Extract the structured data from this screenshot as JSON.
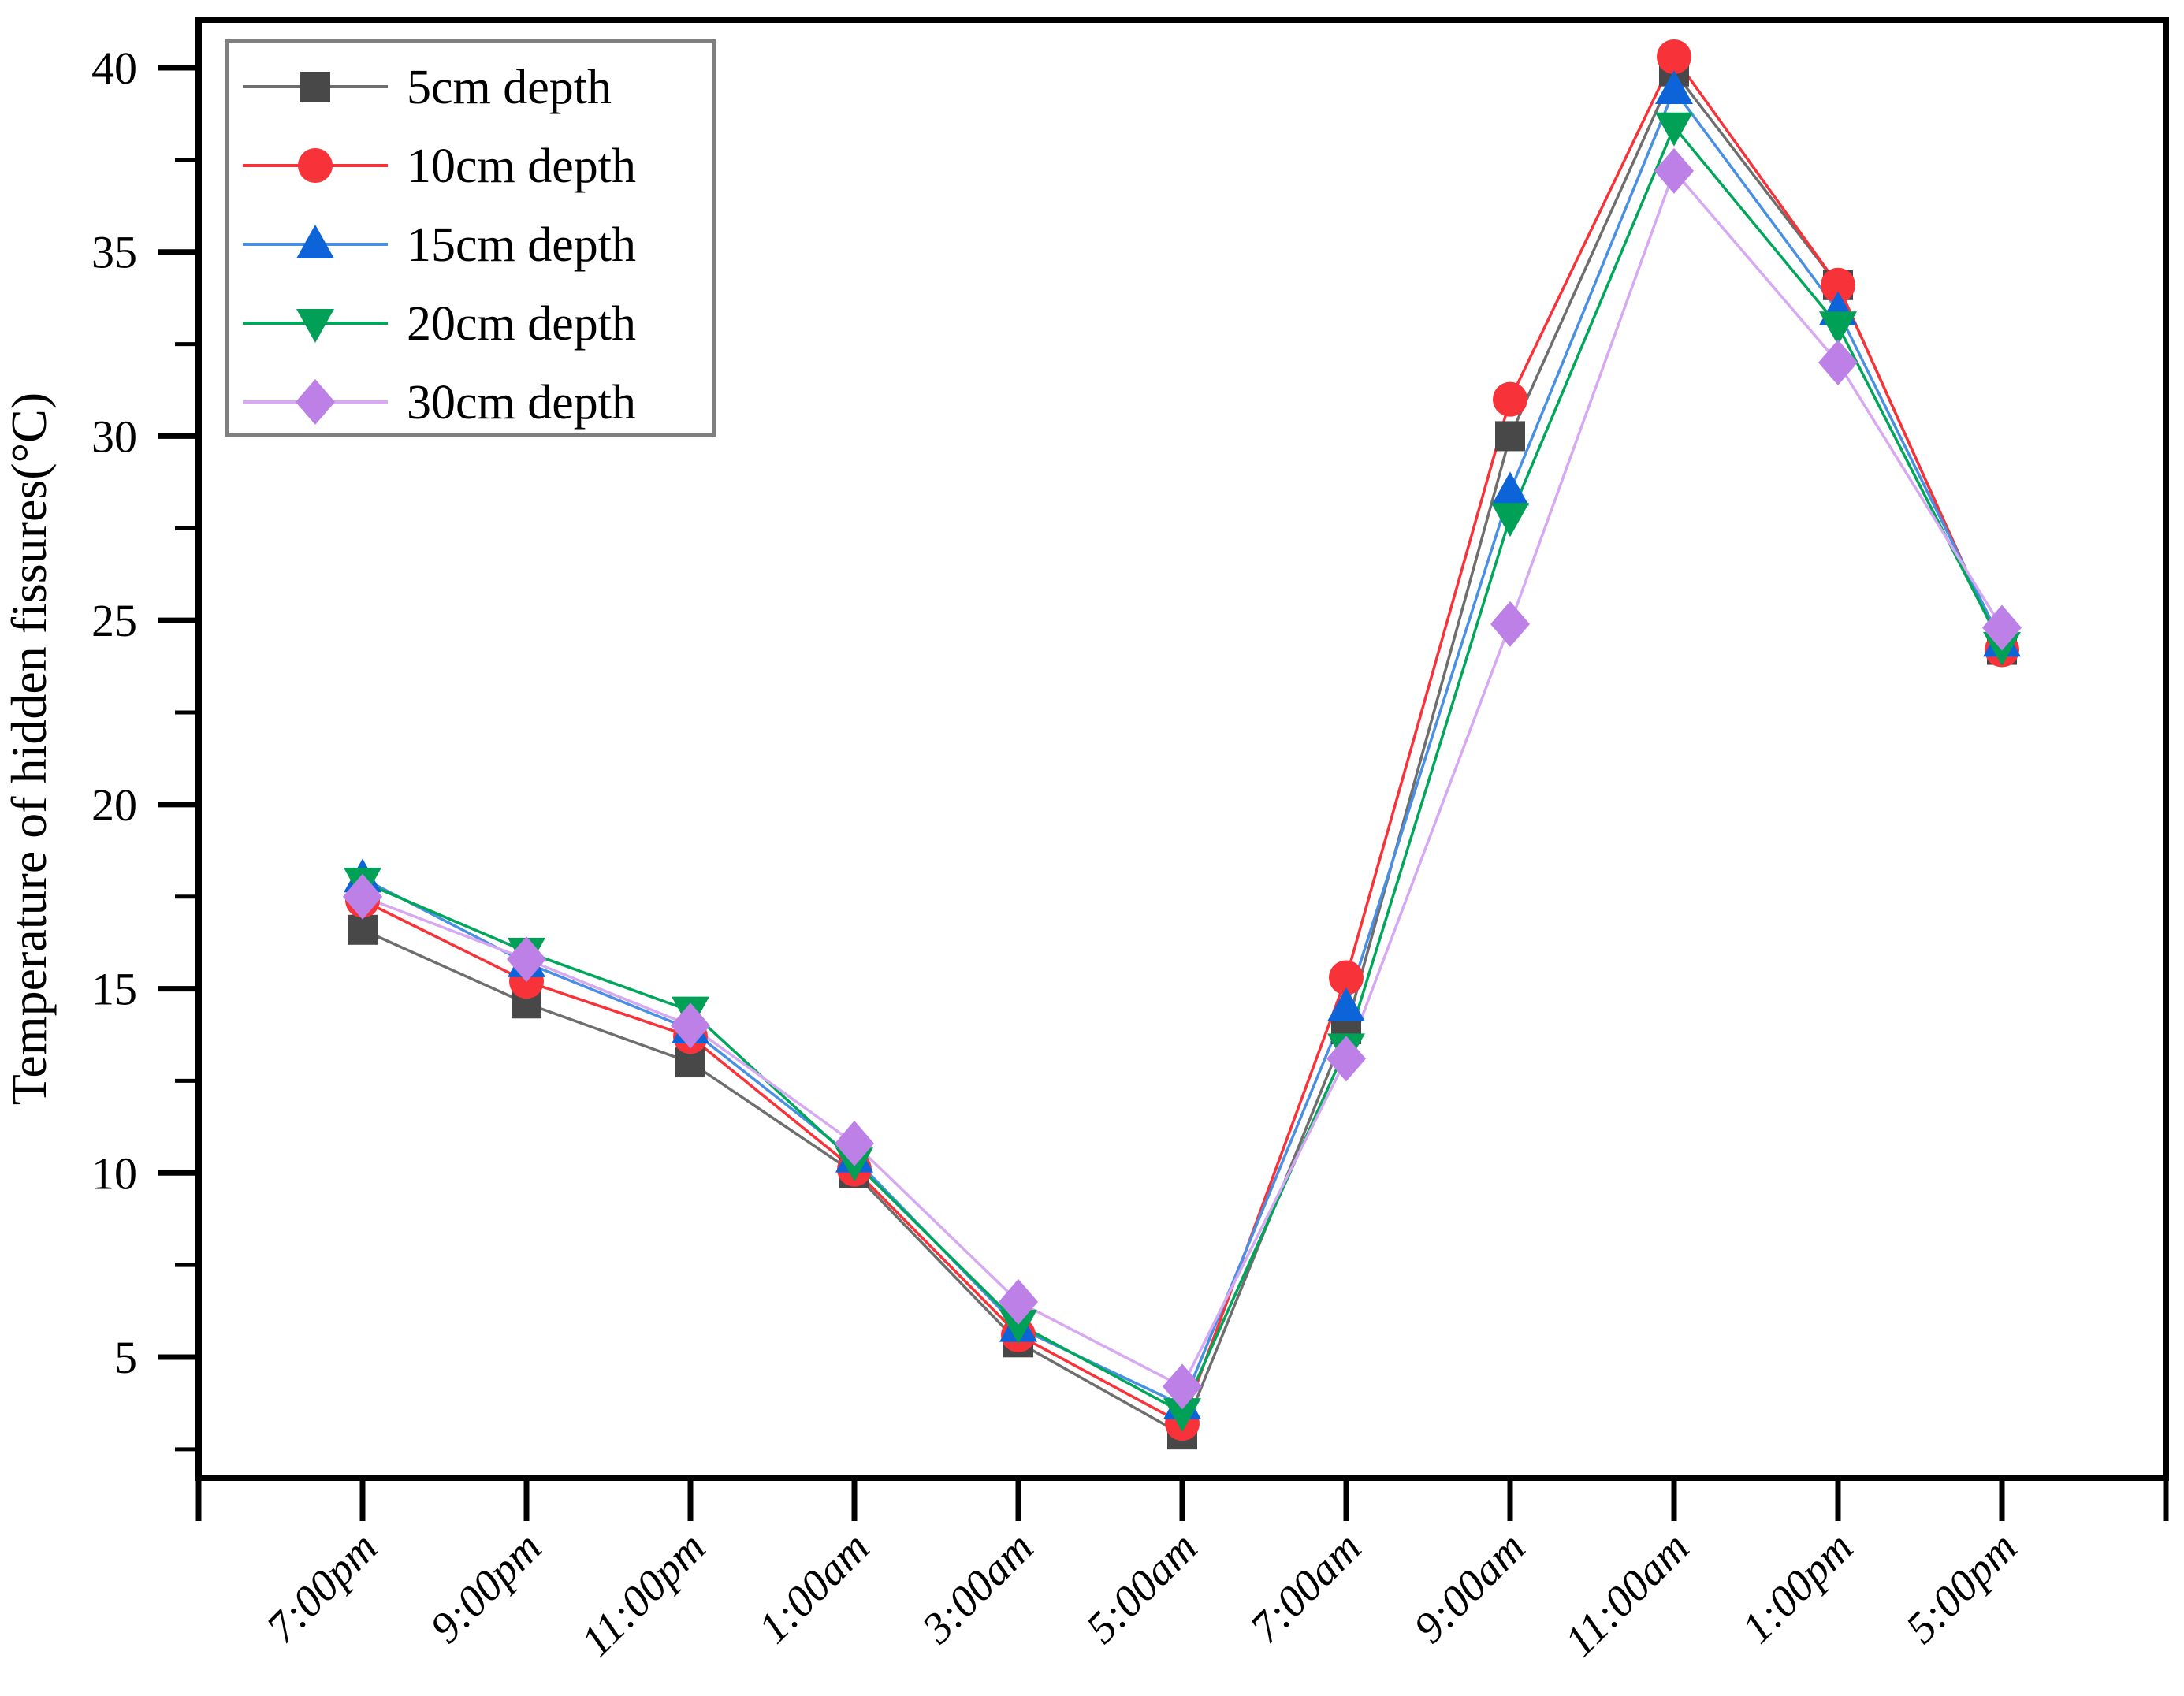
{
  "figure": {
    "background": "#ffffff",
    "axis_color": "#000000",
    "legend_border_color": "#7f7f7f"
  },
  "chart_data": {
    "type": "line",
    "title": "",
    "xlabel": "",
    "ylabel": "Temperature of hidden fissures(°C)",
    "ylim": [
      1.7,
      41.3
    ],
    "yticks": [
      5,
      10,
      15,
      20,
      25,
      30,
      35,
      40
    ],
    "yminorticks": [
      2.5,
      7.5,
      12.5,
      17.5,
      22.5,
      27.5,
      32.5,
      37.5
    ],
    "grid": false,
    "legend_position": "top-left",
    "categories": [
      "7:00pm",
      "9:00pm",
      "11:00pm",
      "1:00am",
      "3:00am",
      "5:00am",
      "7:00am",
      "9:00am",
      "11:00am",
      "1:00pm",
      "5:00pm"
    ],
    "series": [
      {
        "name": "5cm depth",
        "marker": "square",
        "marker_color": "#484848",
        "line_color": "#6e6e6e",
        "values": [
          16.6,
          14.6,
          13.0,
          10.0,
          5.4,
          2.9,
          13.9,
          30.0,
          39.9,
          34.1,
          24.2
        ]
      },
      {
        "name": "10cm depth",
        "marker": "circle",
        "marker_color": "#f73238",
        "line_color": "#f73238",
        "values": [
          17.4,
          15.2,
          13.7,
          10.1,
          5.6,
          3.2,
          15.3,
          31.0,
          40.3,
          34.1,
          24.2
        ]
      },
      {
        "name": "15cm depth",
        "marker": "triangle-up",
        "marker_color": "#0d64d8",
        "line_color": "#4a90e2",
        "values": [
          18.0,
          15.7,
          13.9,
          10.4,
          5.8,
          3.7,
          14.5,
          28.5,
          39.4,
          33.4,
          24.4
        ]
      },
      {
        "name": "20cm depth",
        "marker": "triangle-down",
        "marker_color": "#00a156",
        "line_color": "#00a65a",
        "values": [
          17.9,
          16.0,
          14.4,
          10.3,
          5.9,
          3.5,
          13.4,
          27.8,
          38.4,
          33.0,
          24.3
        ]
      },
      {
        "name": "30cm depth",
        "marker": "diamond",
        "marker_color": "#bd80e6",
        "line_color": "#d7a9f2",
        "values": [
          17.5,
          15.8,
          14.0,
          10.8,
          6.5,
          4.2,
          13.1,
          24.9,
          37.2,
          32.0,
          24.8
        ]
      }
    ]
  }
}
